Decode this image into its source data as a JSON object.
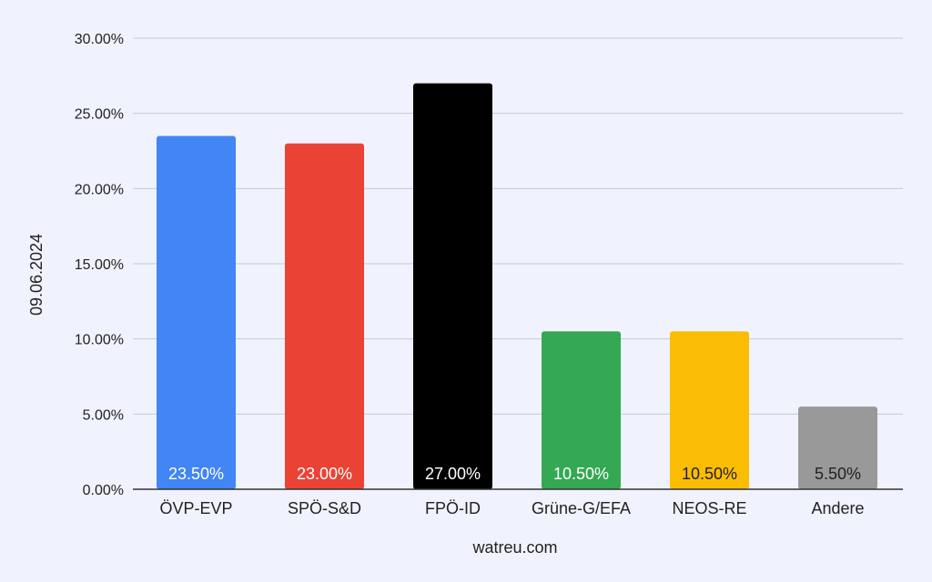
{
  "chart_data": {
    "type": "bar",
    "title": "",
    "xlabel": "watreu.com",
    "ylabel": "09.06.2024",
    "categories": [
      "ÖVP-EVP",
      "SPÖ-S&D",
      "FPÖ-ID",
      "Grüne-G/EFA",
      "NEOS-RE",
      "Andere"
    ],
    "values": [
      23.5,
      23.0,
      27.0,
      10.5,
      10.5,
      5.5
    ],
    "value_labels": [
      "23.50%",
      "23.00%",
      "27.00%",
      "10.50%",
      "10.50%",
      "5.50%"
    ],
    "colors": [
      "#4285f4",
      "#ea4335",
      "#000000",
      "#34a853",
      "#fbbc04",
      "#999999"
    ],
    "label_colors": [
      "#ffffff",
      "#ffffff",
      "#ffffff",
      "#ffffff",
      "#222222",
      "#222222"
    ],
    "yticks": [
      "0.00%",
      "5.00%",
      "10.00%",
      "15.00%",
      "20.00%",
      "25.00%",
      "30.00%"
    ],
    "ylim": [
      0,
      30
    ],
    "grid": true,
    "legend": "none"
  }
}
